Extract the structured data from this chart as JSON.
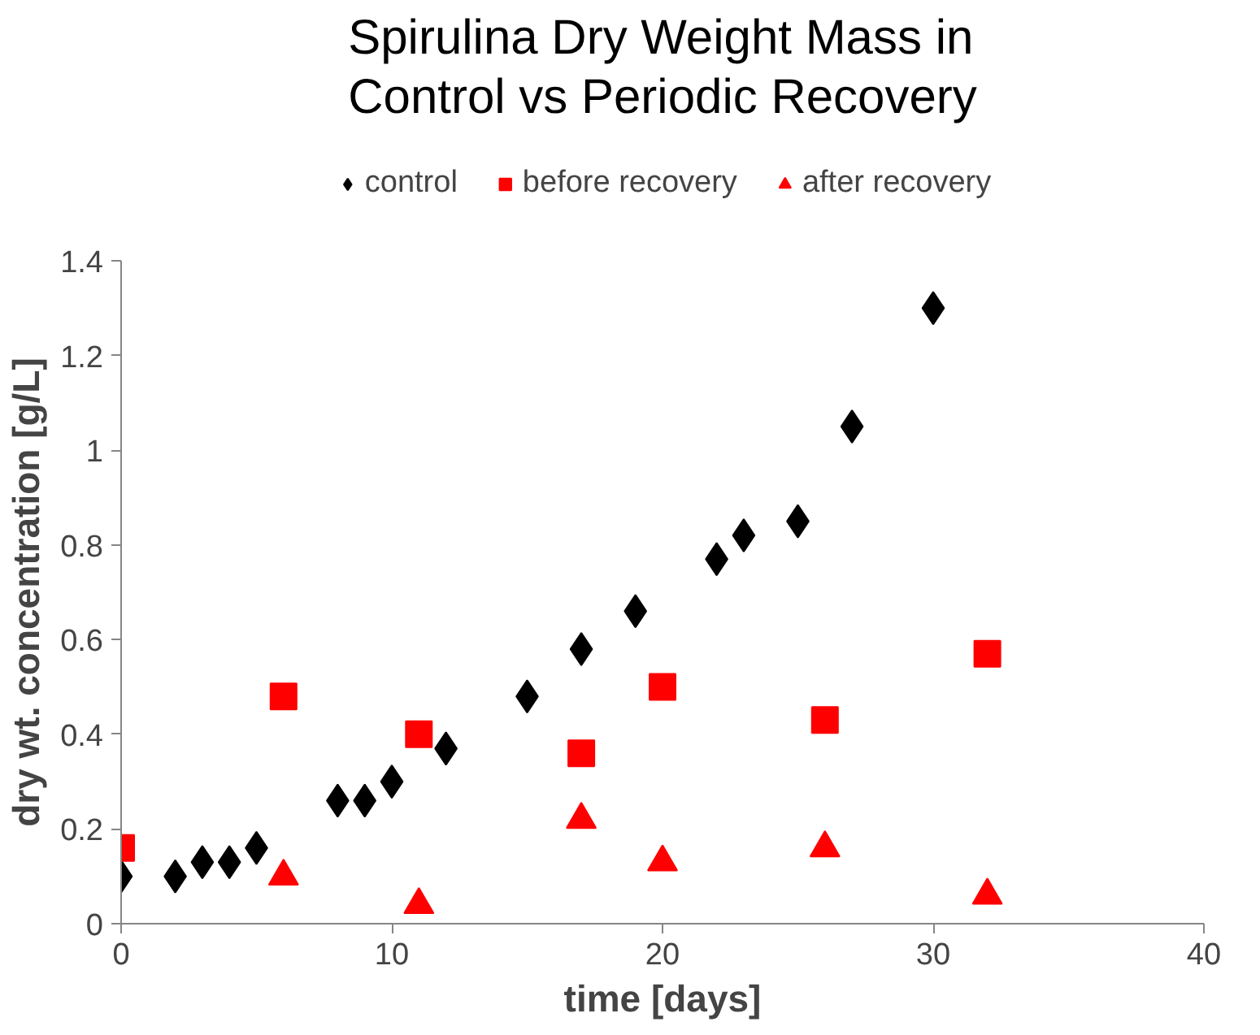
{
  "chart_data": {
    "type": "scatter",
    "title": "Spirulina Dry Weight Mass in\nControl vs Periodic Recovery",
    "xlabel": "time [days]",
    "ylabel": "dry wt. concentration [g/L]",
    "xlim": [
      0,
      40
    ],
    "xticks": [
      0,
      10,
      20,
      30,
      40
    ],
    "ylim": [
      0,
      1.4
    ],
    "yticks": [
      0,
      0.2,
      0.4,
      0.6,
      0.8,
      1,
      1.2,
      1.4
    ],
    "grid": false,
    "legend": "top",
    "series": [
      {
        "name": "control",
        "color": "#000000",
        "marker": "diamond",
        "x": [
          0,
          2,
          3,
          4,
          5,
          8,
          9,
          10,
          12,
          15,
          17,
          19,
          22,
          23,
          25,
          27,
          30
        ],
        "values": [
          0.1,
          0.1,
          0.13,
          0.13,
          0.16,
          0.26,
          0.26,
          0.3,
          0.37,
          0.48,
          0.58,
          0.66,
          0.77,
          0.82,
          0.85,
          1.05,
          1.3
        ]
      },
      {
        "name": "before recovery",
        "color": "#ff0000",
        "marker": "square",
        "x": [
          0,
          6,
          11,
          17,
          20,
          26,
          32
        ],
        "values": [
          0.16,
          0.48,
          0.4,
          0.36,
          0.5,
          0.43,
          0.57
        ]
      },
      {
        "name": "after recovery",
        "color": "#ff0000",
        "marker": "triangle",
        "x": [
          6,
          11,
          17,
          20,
          26,
          32
        ],
        "values": [
          0.1,
          0.04,
          0.22,
          0.13,
          0.16,
          0.06
        ]
      }
    ]
  }
}
